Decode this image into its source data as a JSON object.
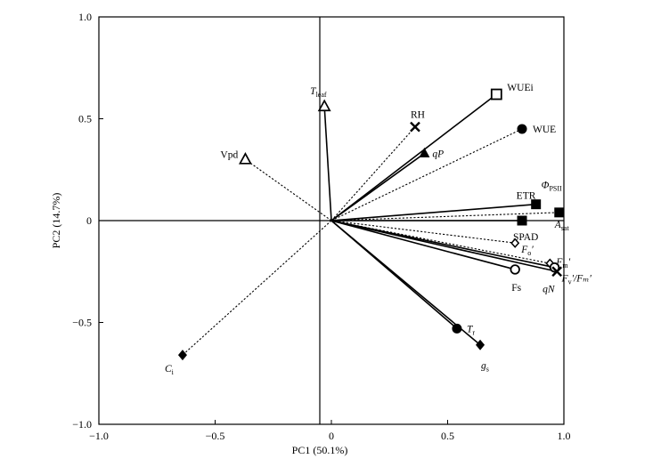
{
  "chart_data": {
    "type": "scatter",
    "subtype": "pca-biplot",
    "title": "",
    "xlabel": "PC1 (50.1%)",
    "ylabel": "PC2 (14.7%)",
    "xlim": [
      -1.0,
      1.0
    ],
    "ylim": [
      -1.0,
      1.0
    ],
    "x_ticks": [
      -1.0,
      -0.5,
      0,
      0.5,
      1.0
    ],
    "x_tick_labels": [
      "−1.0",
      "−0.5",
      "0",
      "0.5",
      "1.0"
    ],
    "y_ticks": [
      -1.0,
      -0.5,
      0,
      0.5,
      1.0
    ],
    "y_tick_labels": [
      "−1.0",
      "−0.5",
      "0",
      "0.5",
      "1.0"
    ],
    "grid": false,
    "legend": "none",
    "points": [
      {
        "id": "wuei",
        "label": "WUEi",
        "sub": "",
        "suffix": "",
        "italic": false,
        "x": 0.71,
        "y": 0.62,
        "marker": "square-open",
        "line": "solid"
      },
      {
        "id": "wue",
        "label": "WUE",
        "sub": "",
        "suffix": "",
        "italic": false,
        "x": 0.82,
        "y": 0.45,
        "marker": "circle-filled",
        "line": "dashed"
      },
      {
        "id": "rh",
        "label": "RH",
        "sub": "",
        "suffix": "",
        "italic": false,
        "x": 0.36,
        "y": 0.46,
        "marker": "cross",
        "line": "dashed"
      },
      {
        "id": "qp",
        "label": "qP",
        "sub": "",
        "suffix": "",
        "italic": true,
        "x": 0.4,
        "y": 0.33,
        "marker": "triangle-filled",
        "line": "solid"
      },
      {
        "id": "tleaf",
        "label": "T",
        "sub": "leaf",
        "suffix": "",
        "italic": true,
        "x": -0.03,
        "y": 0.56,
        "marker": "triangle-open",
        "line": "solid"
      },
      {
        "id": "vpd",
        "label": "Vpd",
        "sub": "",
        "suffix": "",
        "italic": false,
        "x": -0.37,
        "y": 0.3,
        "marker": "triangle-open",
        "line": "dashed"
      },
      {
        "id": "etr",
        "label": "ETR",
        "sub": "",
        "suffix": "",
        "italic": false,
        "x": 0.88,
        "y": 0.08,
        "marker": "square-filled",
        "line": "solid"
      },
      {
        "id": "phipsii",
        "label": "Φ",
        "sub": "PSII",
        "suffix": "",
        "italic": true,
        "x": 0.88,
        "y": 0.08,
        "marker": "none",
        "line": "none"
      },
      {
        "id": "asat",
        "label": "A",
        "sub": "sat",
        "suffix": "",
        "italic": true,
        "x": 0.98,
        "y": 0.04,
        "marker": "square-filled",
        "line": "dashed"
      },
      {
        "id": "spad",
        "label": "SPAD",
        "sub": "",
        "suffix": "",
        "italic": false,
        "x": 0.82,
        "y": 0.0,
        "marker": "square-filled",
        "line": "solid"
      },
      {
        "id": "fo",
        "label": "F",
        "sub": "o",
        "suffix": "′",
        "italic": true,
        "x": 0.79,
        "y": -0.11,
        "marker": "diamond-open",
        "line": "dashed"
      },
      {
        "id": "fm",
        "label": "F",
        "sub": "m",
        "suffix": "′",
        "italic": true,
        "x": 0.94,
        "y": -0.21,
        "marker": "diamond-open",
        "line": "dashed"
      },
      {
        "id": "fvfm",
        "label": "F",
        "sub": "v",
        "suffix": "′/Fₘ′",
        "italic": true,
        "x": 0.96,
        "y": -0.23,
        "marker": "circle-open",
        "line": "solid"
      },
      {
        "id": "qn",
        "label": "qN",
        "sub": "",
        "suffix": "",
        "italic": true,
        "x": 0.97,
        "y": -0.25,
        "marker": "cross",
        "line": "solid"
      },
      {
        "id": "fs",
        "label": "Fs",
        "sub": "",
        "suffix": "",
        "italic": false,
        "x": 0.79,
        "y": -0.24,
        "marker": "circle-open",
        "line": "solid"
      },
      {
        "id": "tr",
        "label": "T",
        "sub": "r",
        "suffix": "",
        "italic": true,
        "x": 0.54,
        "y": -0.53,
        "marker": "circle-filled",
        "line": "solid"
      },
      {
        "id": "gs",
        "label": "g",
        "sub": "s",
        "suffix": "",
        "italic": true,
        "x": 0.64,
        "y": -0.61,
        "marker": "diamond-filled",
        "line": "solid"
      },
      {
        "id": "ci",
        "label": "C",
        "sub": "i",
        "suffix": "",
        "italic": true,
        "x": -0.64,
        "y": -0.66,
        "marker": "diamond-filled",
        "line": "dashed"
      }
    ]
  }
}
